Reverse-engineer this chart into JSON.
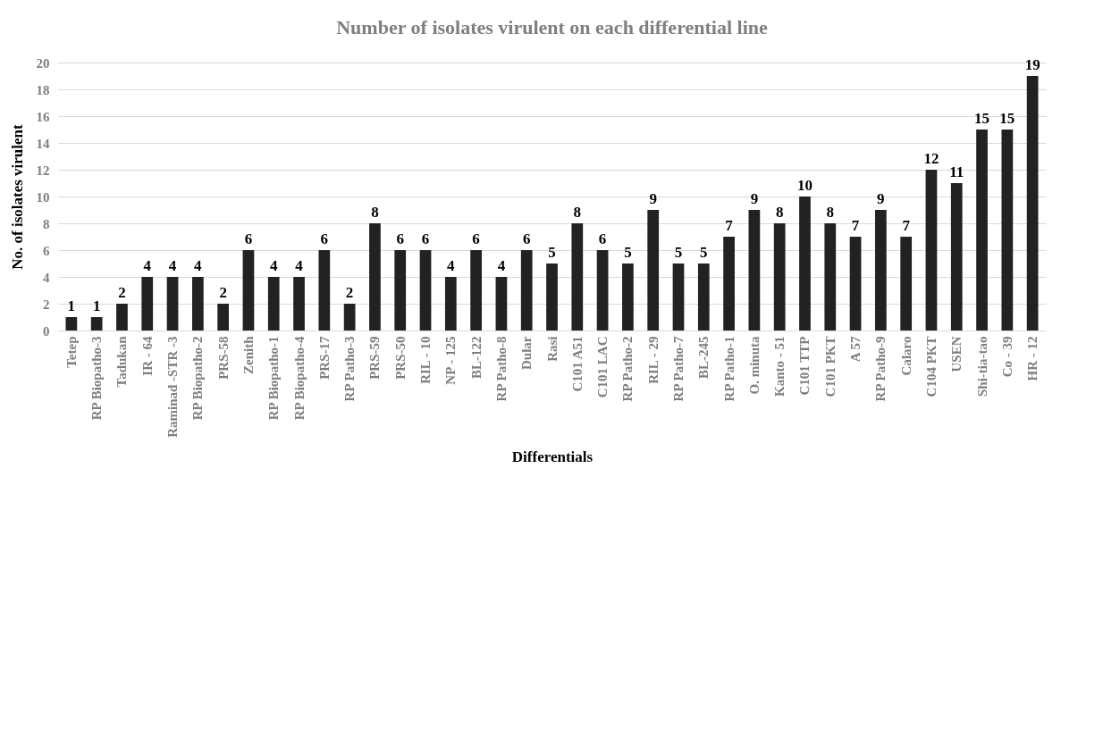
{
  "chart_data": {
    "type": "bar",
    "title": "Number of isolates virulent on each differential line",
    "xlabel": "Differentials",
    "ylabel": "No. of isolates virulent",
    "categories": [
      "Tetep",
      "RP Biopatho-3",
      "Tadukan",
      "IR - 64",
      "Raminad -STR -3",
      "RP Biopatho-2",
      "PRS-58",
      "Zenith",
      "RP Biopatho-1",
      "RP Biopatho-4",
      "PRS-17",
      "RP Patho-3",
      "PRS-59",
      "PRS-50",
      "RIL - 10",
      "NP - 125",
      "BL-122",
      "RP Patho-8",
      "Dular",
      "Rasi",
      "C101 A51",
      "C101 LAC",
      "RP Patho-2",
      "RIL - 29",
      "RP Patho-7",
      "BL-245",
      "RP Patho-1",
      "O. minuta",
      "Kanto - 51",
      "C101 TTP",
      "C101 PKT",
      "A 57",
      "RP Patho-9",
      "Calaro",
      "C104 PKT",
      "USEN",
      "Shi-tia-tao",
      "Co - 39",
      "HR - 12"
    ],
    "values": [
      1,
      1,
      2,
      4,
      4,
      4,
      2,
      6,
      4,
      4,
      6,
      2,
      8,
      6,
      6,
      4,
      6,
      4,
      6,
      5,
      8,
      6,
      5,
      9,
      5,
      5,
      7,
      9,
      8,
      10,
      8,
      7,
      9,
      7,
      12,
      11,
      15,
      15,
      19
    ],
    "color": "#222222",
    "ylim": [
      0,
      20
    ],
    "yticks": [
      0,
      2,
      4,
      6,
      8,
      10,
      12,
      14,
      16,
      18,
      20
    ],
    "grid": "y",
    "data_labels": true
  }
}
